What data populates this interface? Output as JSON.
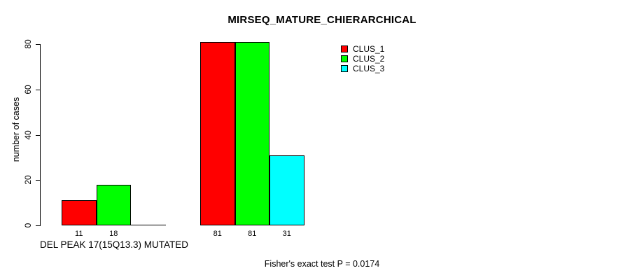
{
  "chart_data": {
    "type": "bar",
    "title": "MIRSEQ_MATURE_CHIERARCHICAL",
    "ylabel": "number of cases",
    "xlabel": "",
    "ylim": [
      0,
      80
    ],
    "yticks": [
      0,
      20,
      40,
      60,
      80
    ],
    "categories": [
      "DEL PEAK 17(15Q13.3) MUTATED",
      ""
    ],
    "series": [
      {
        "name": "CLUS_1",
        "color": "#ff0000",
        "values": [
          11,
          81
        ]
      },
      {
        "name": "CLUS_2",
        "color": "#00ff00",
        "values": [
          18,
          81
        ]
      },
      {
        "name": "CLUS_3",
        "color": "#00ffff",
        "values": [
          0,
          31
        ]
      }
    ],
    "bar_labels": [
      [
        "11",
        "18",
        ""
      ],
      [
        "81",
        "81",
        "31"
      ]
    ],
    "annotation": "Fisher's exact test P = 0.0174",
    "legend_position": "top-right",
    "grid": false,
    "background_color": "#ffffff",
    "text_color": "#000000"
  }
}
